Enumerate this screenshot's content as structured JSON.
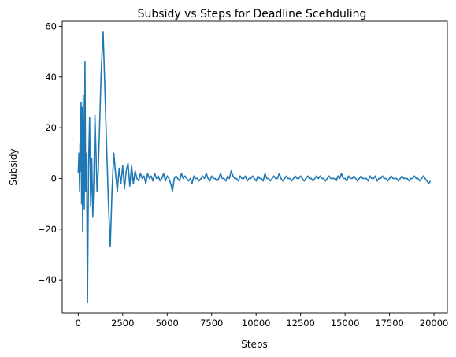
{
  "chart_data": {
    "type": "line",
    "title": "Subsidy vs Steps for Deadline Scehduling",
    "xlabel": "Steps",
    "ylabel": "Subsidy",
    "xlim": [
      -900,
      20750
    ],
    "ylim": [
      -53,
      62
    ],
    "grid": false,
    "x_ticks": [
      0,
      2500,
      5000,
      7500,
      10000,
      12500,
      15000,
      17500,
      20000
    ],
    "x_tick_labels": [
      "0",
      "2500",
      "5000",
      "7500",
      "10000",
      "12500",
      "15000",
      "17500",
      "20000"
    ],
    "y_ticks": [
      -40,
      -20,
      0,
      20,
      40,
      60
    ],
    "y_tick_labels": [
      "−40",
      "−20",
      "0",
      "20",
      "40",
      "60"
    ],
    "series": [
      {
        "color": "#1f77b4",
        "x": [
          0,
          40,
          80,
          100,
          130,
          160,
          190,
          220,
          250,
          280,
          310,
          340,
          380,
          420,
          470,
          520,
          580,
          640,
          700,
          760,
          820,
          880,
          940,
          1000,
          1060,
          1120,
          1200,
          1280,
          1400,
          1500,
          1600,
          1700,
          1800,
          1900,
          2000,
          2100,
          2200,
          2300,
          2400,
          2500,
          2600,
          2700,
          2800,
          2900,
          3000,
          3100,
          3200,
          3300,
          3400,
          3500,
          3600,
          3700,
          3800,
          3900,
          4000,
          4100,
          4200,
          4300,
          4400,
          4500,
          4600,
          4700,
          4800,
          4900,
          5000,
          5100,
          5200,
          5300,
          5400,
          5500,
          5600,
          5700,
          5800,
          5900,
          6000,
          6100,
          6200,
          6300,
          6400,
          6500,
          6600,
          6700,
          6800,
          6900,
          7000,
          7100,
          7200,
          7300,
          7400,
          7500,
          7600,
          7700,
          7800,
          7900,
          8000,
          8100,
          8200,
          8300,
          8400,
          8500,
          8600,
          8700,
          8800,
          8900,
          9000,
          9100,
          9200,
          9300,
          9400,
          9500,
          9600,
          9700,
          9800,
          9900,
          10000,
          10100,
          10200,
          10300,
          10400,
          10500,
          10600,
          10700,
          10800,
          10900,
          11000,
          11100,
          11200,
          11300,
          11400,
          11500,
          11600,
          11700,
          11800,
          11900,
          12000,
          12100,
          12200,
          12300,
          12400,
          12500,
          12600,
          12700,
          12800,
          12900,
          13000,
          13100,
          13200,
          13300,
          13400,
          13500,
          13600,
          13700,
          13800,
          13900,
          14000,
          14100,
          14200,
          14300,
          14400,
          14500,
          14600,
          14700,
          14800,
          14900,
          15000,
          15100,
          15200,
          15300,
          15400,
          15500,
          15600,
          15700,
          15800,
          15900,
          16000,
          16100,
          16200,
          16300,
          16400,
          16500,
          16600,
          16700,
          16800,
          16900,
          17000,
          17100,
          17200,
          17300,
          17400,
          17500,
          17600,
          17700,
          17800,
          17900,
          18000,
          18100,
          18200,
          18300,
          18400,
          18500,
          18600,
          18700,
          18800,
          18900,
          19000,
          19100,
          19200,
          19300,
          19400,
          19500,
          19600,
          19700,
          19800
        ],
        "values": [
          2,
          10,
          -5,
          14,
          3,
          30,
          -10,
          28,
          -21,
          33,
          5,
          -12,
          46,
          -5,
          10,
          -49,
          5,
          24,
          -11,
          8,
          -15,
          0,
          25,
          10,
          -5,
          2,
          20,
          40,
          58,
          35,
          12,
          -10,
          -27,
          -5,
          10,
          2,
          -5,
          4,
          -2,
          5,
          -4,
          3,
          6,
          -3,
          5,
          -2,
          3,
          0,
          -1,
          2,
          0,
          1,
          -2,
          2,
          0,
          1,
          -1,
          2,
          0,
          1,
          -1,
          0,
          2,
          -1,
          1,
          0,
          -2,
          -5,
          0,
          1,
          0,
          -1,
          2,
          0,
          1,
          0,
          -1,
          0,
          -2,
          1,
          0,
          0,
          -1,
          0,
          1,
          0,
          2,
          0,
          -1,
          1,
          0,
          0,
          -1,
          0,
          2,
          0,
          0,
          -1,
          1,
          0,
          3,
          1,
          0,
          0,
          -1,
          1,
          0,
          0,
          1,
          -1,
          0,
          0,
          1,
          0,
          -1,
          1,
          0,
          0,
          -1,
          2,
          0,
          0,
          -1,
          0,
          1,
          0,
          0,
          2,
          0,
          -1,
          0,
          1,
          0,
          0,
          -1,
          0,
          1,
          0,
          0,
          1,
          0,
          -1,
          0,
          1,
          0,
          0,
          -1,
          0,
          1,
          0,
          1,
          0,
          0,
          -1,
          0,
          1,
          0,
          0,
          0,
          -1,
          1,
          0,
          2,
          0,
          0,
          -1,
          1,
          0,
          0,
          1,
          0,
          -1,
          0,
          1,
          0,
          0,
          0,
          -1,
          1,
          0,
          0,
          1,
          -1,
          0,
          0,
          1,
          0,
          0,
          -1,
          0,
          1,
          0,
          0,
          0,
          -1,
          0,
          1,
          0,
          0,
          0,
          -1,
          0,
          0,
          1,
          0,
          0,
          -1,
          0,
          1,
          0,
          -1,
          -2,
          -1
        ]
      }
    ]
  }
}
